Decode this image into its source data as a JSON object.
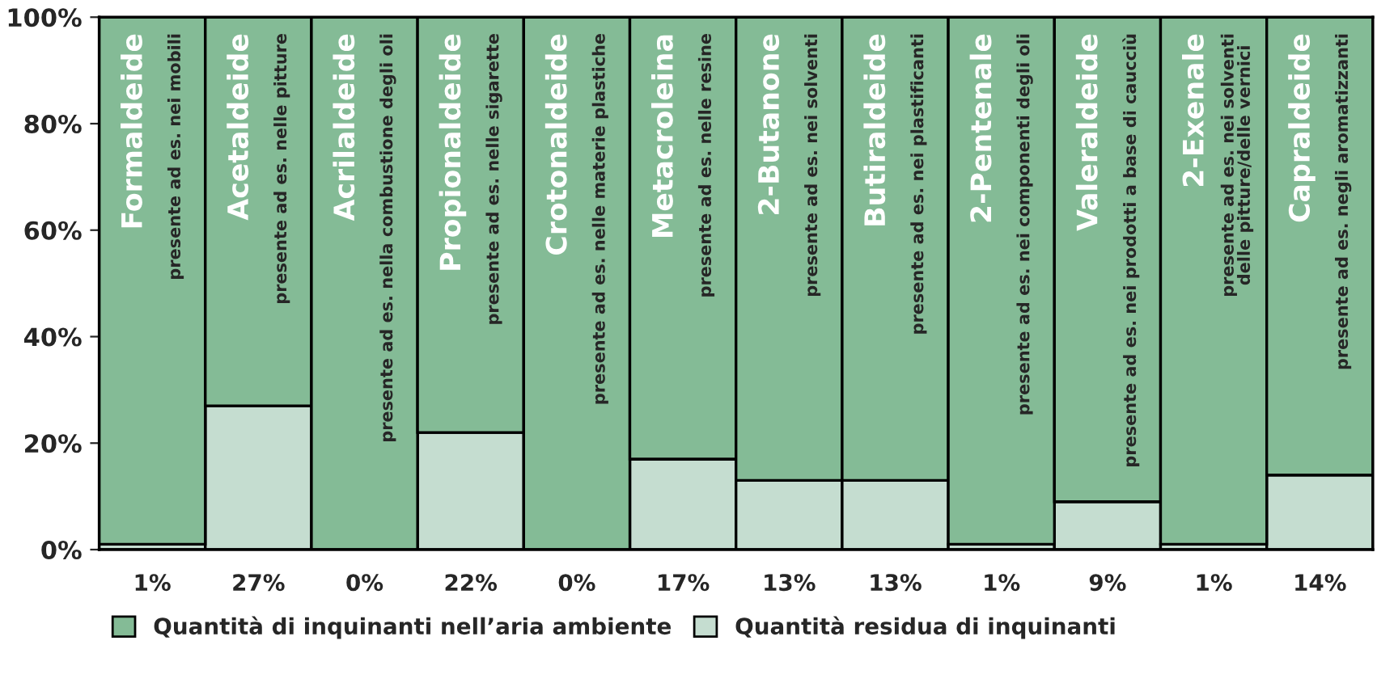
{
  "chart_data": {
    "type": "bar",
    "stacked": true,
    "categories": [
      "Formaldeide",
      "Acetaldeide",
      "Acrilaldeide",
      "Propionaldeide",
      "Crotonaldeide",
      "Metacroleina",
      "2-Butanone",
      "Butiraldeide",
      "2-Pentenale",
      "Valeraldeide",
      "2-Exenale",
      "Capraldeide"
    ],
    "series": [
      {
        "name": "Quantità residua di inquinanti",
        "color": "#c5ddd0",
        "values": [
          1,
          27,
          0,
          22,
          0,
          17,
          13,
          13,
          1,
          9,
          1,
          14
        ],
        "value_labels": [
          "1%",
          "27%",
          "0%",
          "22%",
          "0%",
          "17%",
          "13%",
          "13%",
          "1%",
          "9%",
          "1%",
          "14%"
        ]
      },
      {
        "name": "Quantità di inquinanti nell’aria ambiente",
        "color": "#84bb96",
        "values": [
          99,
          73,
          100,
          78,
          100,
          83,
          87,
          87,
          99,
          91,
          99,
          86
        ]
      }
    ],
    "ylim": [
      0,
      100
    ],
    "yticks": [
      {
        "value": 0,
        "label": "0%"
      },
      {
        "value": 20,
        "label": "20%"
      },
      {
        "value": 40,
        "label": "40%"
      },
      {
        "value": 60,
        "label": "60%"
      },
      {
        "value": 80,
        "label": "80%"
      },
      {
        "value": 100,
        "label": "100%"
      }
    ],
    "legend": "bottom",
    "annotations": [
      "presente ad es. nei mobili",
      "presente ad es. nelle pitture",
      "presente ad es. nella combustione degli oli",
      "presente ad es. nelle sigarette",
      "presente ad es. nelle materie plastiche",
      "presente ad es. nelle resine",
      "presente ad es. nei solventi",
      "presente ad es. nei plastificanti",
      "presente ad es. nei componenti degli oli",
      "presente ad es. nei prodotti a base di caucciù",
      "presente ad es. nei solventi\ndelle pitture/delle vernici",
      "presente ad es. negli aromatizzanti"
    ]
  }
}
